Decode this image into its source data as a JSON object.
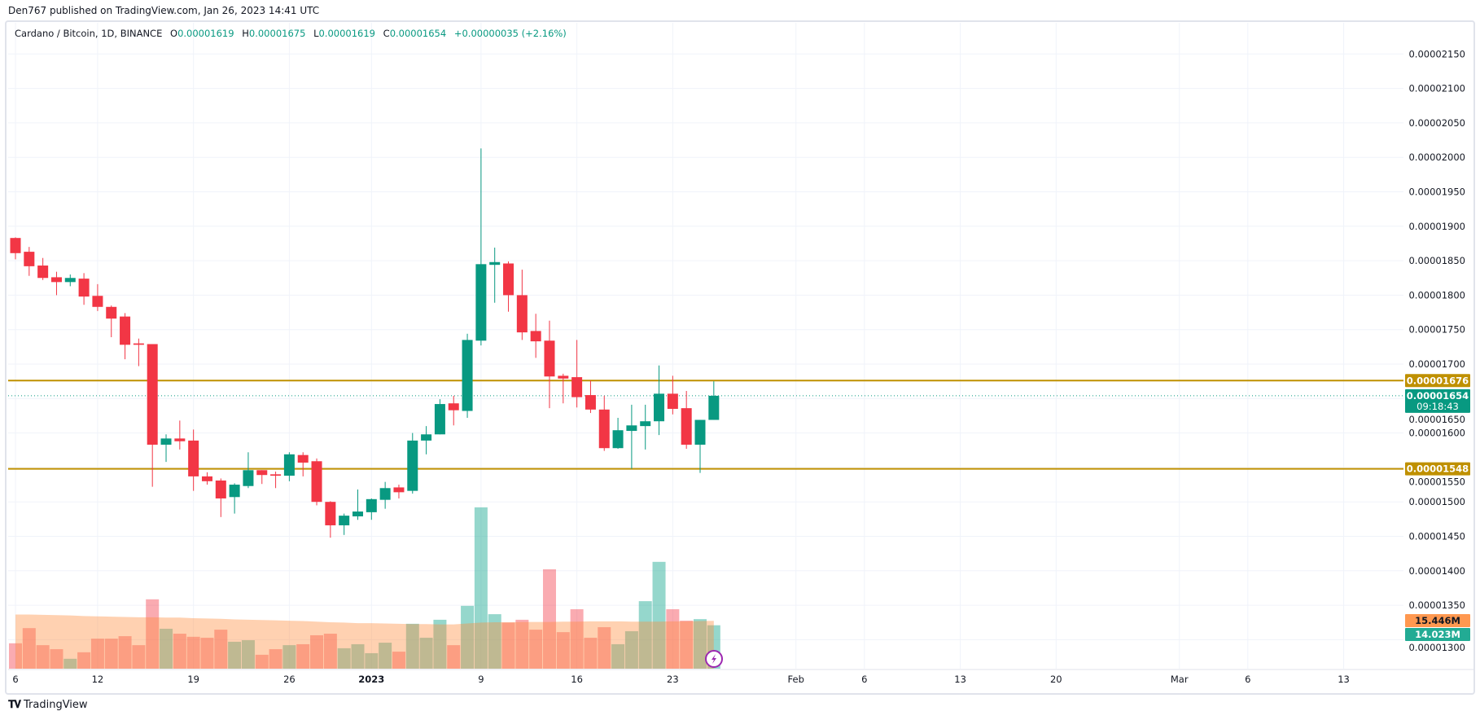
{
  "header": {
    "published": "Den767 published on TradingView.com, Jan 26, 2023 14:41 UTC"
  },
  "legend": {
    "symbol": "Cardano / Bitcoin, 1D, BINANCE",
    "o_label": "O",
    "o": "0.00001619",
    "h_label": "H",
    "h": "0.00001675",
    "l_label": "L",
    "l": "0.00001619",
    "c_label": "C",
    "c": "0.00001654",
    "change": "+0.00000035 (+2.16%)"
  },
  "footer": {
    "brand": "TradingView",
    "logo_icon": "tradingview-logo-icon"
  },
  "colors": {
    "up": "#089981",
    "down": "#f23645",
    "level": "#bf9000",
    "volume_up": "rgba(34,171,148,0.48)",
    "volume_down": "rgba(242,54,69,0.42)",
    "volume_ma": "rgba(255,140,60,0.4)",
    "volume_ma_label": "#ff9850",
    "volume_label": "#22ab94"
  },
  "chart_data": {
    "type": "candlestick",
    "symbol": "ADA/BTC",
    "ylim": [
      1.28e-05,
      2.17e-05
    ],
    "grid": true,
    "y_ticks": [
      "0.00002150",
      "0.00002100",
      "0.00002050",
      "0.00002000",
      "0.00001950",
      "0.00001900",
      "0.00001850",
      "0.00001800",
      "0.00001750",
      "0.00001700",
      "0.00001650",
      "0.00001600",
      "0.00001550",
      "0.00001500",
      "0.00001450",
      "0.00001400",
      "0.00001350",
      "0.00001300"
    ],
    "x_ticks": [
      {
        "label": "6",
        "date": "2022-12-06"
      },
      {
        "label": "12",
        "date": "2022-12-12"
      },
      {
        "label": "19",
        "date": "2022-12-19"
      },
      {
        "label": "26",
        "date": "2022-12-26"
      },
      {
        "label": "2023",
        "date": "2023-01-01",
        "bold": true
      },
      {
        "label": "9",
        "date": "2023-01-09"
      },
      {
        "label": "16",
        "date": "2023-01-16"
      },
      {
        "label": "23",
        "date": "2023-01-23"
      },
      {
        "label": "Feb",
        "date": "2023-02-01"
      },
      {
        "label": "6",
        "date": "2023-02-06"
      },
      {
        "label": "13",
        "date": "2023-02-13"
      },
      {
        "label": "20",
        "date": "2023-02-20"
      },
      {
        "label": "Mar",
        "date": "2023-03-01"
      },
      {
        "label": "6",
        "date": "2023-03-06"
      },
      {
        "label": "13",
        "date": "2023-03-13"
      }
    ],
    "dates": [
      "2022-12-06",
      "2022-12-07",
      "2022-12-08",
      "2022-12-09",
      "2022-12-10",
      "2022-12-11",
      "2022-12-12",
      "2022-12-13",
      "2022-12-14",
      "2022-12-15",
      "2022-12-16",
      "2022-12-17",
      "2022-12-18",
      "2022-12-19",
      "2022-12-20",
      "2022-12-21",
      "2022-12-22",
      "2022-12-23",
      "2022-12-24",
      "2022-12-25",
      "2022-12-26",
      "2022-12-27",
      "2022-12-28",
      "2022-12-29",
      "2022-12-30",
      "2022-12-31",
      "2023-01-01",
      "2023-01-02",
      "2023-01-03",
      "2023-01-04",
      "2023-01-05",
      "2023-01-06",
      "2023-01-07",
      "2023-01-08",
      "2023-01-09",
      "2023-01-10",
      "2023-01-11",
      "2023-01-12",
      "2023-01-13",
      "2023-01-14",
      "2023-01-15",
      "2023-01-16",
      "2023-01-17",
      "2023-01-18",
      "2023-01-19",
      "2023-01-20",
      "2023-01-21",
      "2023-01-22",
      "2023-01-23",
      "2023-01-24",
      "2023-01-25",
      "2023-01-26"
    ],
    "ohlc_1e8": [
      [
        1883,
        1884,
        1852,
        1861
      ],
      [
        1863,
        1870,
        1828,
        1842
      ],
      [
        1843,
        1854,
        1822,
        1825
      ],
      [
        1826,
        1834,
        1800,
        1819
      ],
      [
        1819,
        1830,
        1813,
        1825
      ],
      [
        1824,
        1832,
        1786,
        1798
      ],
      [
        1799,
        1816,
        1777,
        1783
      ],
      [
        1783,
        1785,
        1739,
        1766
      ],
      [
        1769,
        1774,
        1707,
        1728
      ],
      [
        1730,
        1737,
        1697,
        1728
      ],
      [
        1729,
        1729,
        1522,
        1583
      ],
      [
        1583,
        1598,
        1558,
        1592
      ],
      [
        1592,
        1618,
        1576,
        1588
      ],
      [
        1589,
        1605,
        1516,
        1537
      ],
      [
        1537,
        1543,
        1525,
        1530
      ],
      [
        1531,
        1534,
        1478,
        1505
      ],
      [
        1507,
        1527,
        1483,
        1525
      ],
      [
        1523,
        1572,
        1520,
        1546
      ],
      [
        1546,
        1546,
        1526,
        1539
      ],
      [
        1540,
        1544,
        1520,
        1538
      ],
      [
        1538,
        1572,
        1530,
        1569
      ],
      [
        1568,
        1572,
        1537,
        1557
      ],
      [
        1559,
        1563,
        1495,
        1500
      ],
      [
        1500,
        1501,
        1448,
        1466
      ],
      [
        1466,
        1483,
        1452,
        1480
      ],
      [
        1479,
        1518,
        1474,
        1486
      ],
      [
        1485,
        1505,
        1474,
        1504
      ],
      [
        1503,
        1529,
        1490,
        1520
      ],
      [
        1521,
        1525,
        1505,
        1514
      ],
      [
        1516,
        1600,
        1512,
        1589
      ],
      [
        1589,
        1610,
        1569,
        1598
      ],
      [
        1598,
        1649,
        1598,
        1642
      ],
      [
        1643,
        1654,
        1611,
        1633
      ],
      [
        1632,
        1744,
        1622,
        1735
      ],
      [
        1734,
        2013,
        1727,
        1845
      ],
      [
        1844,
        1869,
        1789,
        1848
      ],
      [
        1846,
        1849,
        1776,
        1800
      ],
      [
        1800,
        1837,
        1735,
        1746
      ],
      [
        1748,
        1773,
        1709,
        1733
      ],
      [
        1734,
        1763,
        1636,
        1682
      ],
      [
        1683,
        1686,
        1643,
        1679
      ],
      [
        1681,
        1735,
        1637,
        1652
      ],
      [
        1655,
        1676,
        1629,
        1634
      ],
      [
        1634,
        1654,
        1574,
        1578
      ],
      [
        1578,
        1622,
        1577,
        1604
      ],
      [
        1603,
        1641,
        1548,
        1611
      ],
      [
        1610,
        1641,
        1576,
        1617
      ],
      [
        1617,
        1698,
        1597,
        1657
      ],
      [
        1657,
        1683,
        1627,
        1635
      ],
      [
        1636,
        1661,
        1577,
        1583
      ],
      [
        1583,
        1619,
        1542,
        1619
      ],
      [
        1619,
        1675,
        1619,
        1654
      ]
    ],
    "volume_millions": [
      8.2,
      13.1,
      7.6,
      6.3,
      3.2,
      5.3,
      9.7,
      9.7,
      10.5,
      7.6,
      22.4,
      12.9,
      11.3,
      10.3,
      10.0,
      12.6,
      8.7,
      9.2,
      4.5,
      6.3,
      7.6,
      7.9,
      10.8,
      11.3,
      6.6,
      7.9,
      5.0,
      8.4,
      5.5,
      14.5,
      10.0,
      15.8,
      7.6,
      20.3,
      52.1,
      17.6,
      14.9,
      15.8,
      12.6,
      32.1,
      11.8,
      19.2,
      10.0,
      13.4,
      7.9,
      12.1,
      21.8,
      34.5,
      19.2,
      15.5,
      16.0,
      14.023
    ],
    "volume_ma_millions": [
      17.5,
      17.5,
      17.4,
      17.3,
      17.2,
      17.0,
      16.9,
      16.8,
      16.7,
      16.6,
      16.6,
      16.5,
      16.5,
      16.3,
      16.2,
      16.1,
      15.9,
      15.8,
      15.7,
      15.6,
      15.5,
      15.4,
      15.2,
      15.0,
      14.9,
      14.7,
      14.7,
      14.6,
      14.5,
      14.4,
      14.4,
      14.3,
      14.3,
      14.6,
      14.9,
      15.0,
      15.0,
      15.1,
      15.1,
      15.1,
      15.2,
      15.2,
      15.3,
      15.3,
      15.3,
      15.2,
      15.2,
      15.2,
      15.3,
      15.3,
      15.4,
      15.446
    ],
    "levels": [
      {
        "price": "0.00001676",
        "value_1e8": 1676
      },
      {
        "price": "0.00001548",
        "value_1e8": 1548
      }
    ],
    "last_price": {
      "price": "0.00001654",
      "value_1e8": 1654,
      "countdown": "09:18:43"
    },
    "volume_labels": {
      "ma": "15.446M",
      "volume": "14.023M"
    }
  }
}
